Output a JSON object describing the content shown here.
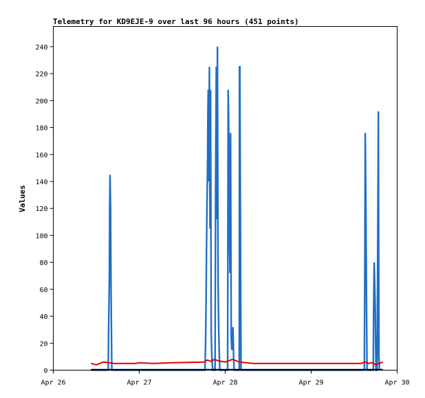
{
  "chart_data": {
    "type": "line",
    "title": "Telemetry for KD9EJE-9 over last 96 hours (451 points)",
    "xlabel": "",
    "ylabel": "Values",
    "xlim": [
      "2025-04-26T00:00",
      "2025-04-30T00:00"
    ],
    "ylim": [
      0,
      255
    ],
    "x_tick_labels": [
      "Apr 26",
      "Apr 27",
      "Apr 28",
      "Apr 29",
      "Apr 30"
    ],
    "y_ticks": [
      0,
      20,
      40,
      60,
      80,
      100,
      120,
      140,
      160,
      180,
      200,
      220,
      240
    ],
    "grid": false,
    "legend": "none",
    "colors": {
      "series_a": "#1f6fc5",
      "series_b": "#e00000",
      "series_c": "#000000",
      "axes": "#000000"
    },
    "series": [
      {
        "values": [
          [
            "2025-04-26T10:30",
            0
          ],
          [
            "2025-04-26T15:20",
            0
          ],
          [
            "2025-04-26T15:25",
            25
          ],
          [
            "2025-04-26T15:40",
            72
          ],
          [
            "2025-04-26T15:45",
            120
          ],
          [
            "2025-04-26T15:50",
            145
          ],
          [
            "2025-04-26T16:00",
            120
          ],
          [
            "2025-04-26T16:05",
            72
          ],
          [
            "2025-04-26T16:15",
            25
          ],
          [
            "2025-04-26T16:20",
            0
          ],
          [
            "2025-04-27T18:20",
            0
          ],
          [
            "2025-04-27T18:30",
            18
          ],
          [
            "2025-04-27T18:40",
            52
          ],
          [
            "2025-04-27T18:45",
            86
          ],
          [
            "2025-04-27T18:55",
            122
          ],
          [
            "2025-04-27T19:05",
            156
          ],
          [
            "2025-04-27T19:10",
            191
          ],
          [
            "2025-04-27T19:15",
            208
          ],
          [
            "2025-04-27T19:25",
            140
          ],
          [
            "2025-04-27T19:35",
            225
          ],
          [
            "2025-04-27T19:45",
            105
          ],
          [
            "2025-04-27T19:55",
            208
          ],
          [
            "2025-04-27T20:05",
            30
          ],
          [
            "2025-04-27T20:15",
            10
          ],
          [
            "2025-04-27T20:30",
            0
          ],
          [
            "2025-04-27T21:10",
            0
          ],
          [
            "2025-04-27T21:20",
            145
          ],
          [
            "2025-04-27T21:30",
            225
          ],
          [
            "2025-04-27T21:40",
            112
          ],
          [
            "2025-04-27T21:50",
            240
          ],
          [
            "2025-04-27T22:00",
            65
          ],
          [
            "2025-04-27T22:10",
            32
          ],
          [
            "2025-04-27T22:20",
            12
          ],
          [
            "2025-04-27T22:30",
            0
          ],
          [
            "2025-04-28T00:40",
            0
          ],
          [
            "2025-04-28T00:50",
            208
          ],
          [
            "2025-04-28T01:00",
            175
          ],
          [
            "2025-04-28T01:10",
            98
          ],
          [
            "2025-04-28T01:20",
            72
          ],
          [
            "2025-04-28T01:30",
            176
          ],
          [
            "2025-04-28T01:40",
            25
          ],
          [
            "2025-04-28T01:50",
            15
          ],
          [
            "2025-04-28T02:10",
            32
          ],
          [
            "2025-04-28T02:20",
            10
          ],
          [
            "2025-04-28T02:30",
            0
          ],
          [
            "2025-04-28T03:55",
            0
          ],
          [
            "2025-04-28T04:00",
            225
          ],
          [
            "2025-04-28T04:05",
            225
          ],
          [
            "2025-04-28T04:15",
            112
          ],
          [
            "2025-04-28T04:25",
            0
          ],
          [
            "2025-04-29T14:50",
            0
          ],
          [
            "2025-04-29T15:00",
            88
          ],
          [
            "2025-04-29T15:05",
            176
          ],
          [
            "2025-04-29T15:15",
            132
          ],
          [
            "2025-04-29T15:25",
            60
          ],
          [
            "2025-04-29T15:35",
            0
          ],
          [
            "2025-04-29T17:20",
            0
          ],
          [
            "2025-04-29T17:25",
            40
          ],
          [
            "2025-04-29T17:35",
            80
          ],
          [
            "2025-04-29T17:45",
            64
          ],
          [
            "2025-04-29T17:55",
            40
          ],
          [
            "2025-04-29T18:05",
            0
          ],
          [
            "2025-04-29T18:25",
            0
          ],
          [
            "2025-04-29T18:35",
            96
          ],
          [
            "2025-04-29T18:45",
            192
          ],
          [
            "2025-04-29T18:55",
            10
          ],
          [
            "2025-04-29T19:05",
            0
          ]
        ]
      },
      {
        "values": [
          [
            "2025-04-26T10:30",
            5
          ],
          [
            "2025-04-26T12:00",
            4
          ],
          [
            "2025-04-26T14:00",
            6
          ],
          [
            "2025-04-26T17:00",
            5
          ],
          [
            "2025-04-26T23:00",
            5
          ],
          [
            "2025-04-27T00:00",
            5.5
          ],
          [
            "2025-04-27T04:00",
            5
          ],
          [
            "2025-04-27T09:00",
            5.5
          ],
          [
            "2025-04-27T18:00",
            6
          ],
          [
            "2025-04-27T19:00",
            7.5
          ],
          [
            "2025-04-27T20:00",
            6.5
          ],
          [
            "2025-04-27T21:00",
            8
          ],
          [
            "2025-04-27T22:00",
            7
          ],
          [
            "2025-04-28T00:00",
            6
          ],
          [
            "2025-04-28T01:00",
            7
          ],
          [
            "2025-04-28T02:00",
            8
          ],
          [
            "2025-04-28T04:00",
            6
          ],
          [
            "2025-04-28T08:00",
            5
          ],
          [
            "2025-04-29T14:00",
            5
          ],
          [
            "2025-04-29T15:00",
            6
          ],
          [
            "2025-04-29T16:00",
            5
          ],
          [
            "2025-04-29T17:00",
            5.5
          ],
          [
            "2025-04-29T18:00",
            4
          ],
          [
            "2025-04-29T19:00",
            5
          ],
          [
            "2025-04-29T20:00",
            6
          ]
        ]
      },
      {
        "values": [
          [
            "2025-04-26T10:30",
            0.5
          ],
          [
            "2025-04-29T20:00",
            0.5
          ]
        ]
      }
    ]
  }
}
